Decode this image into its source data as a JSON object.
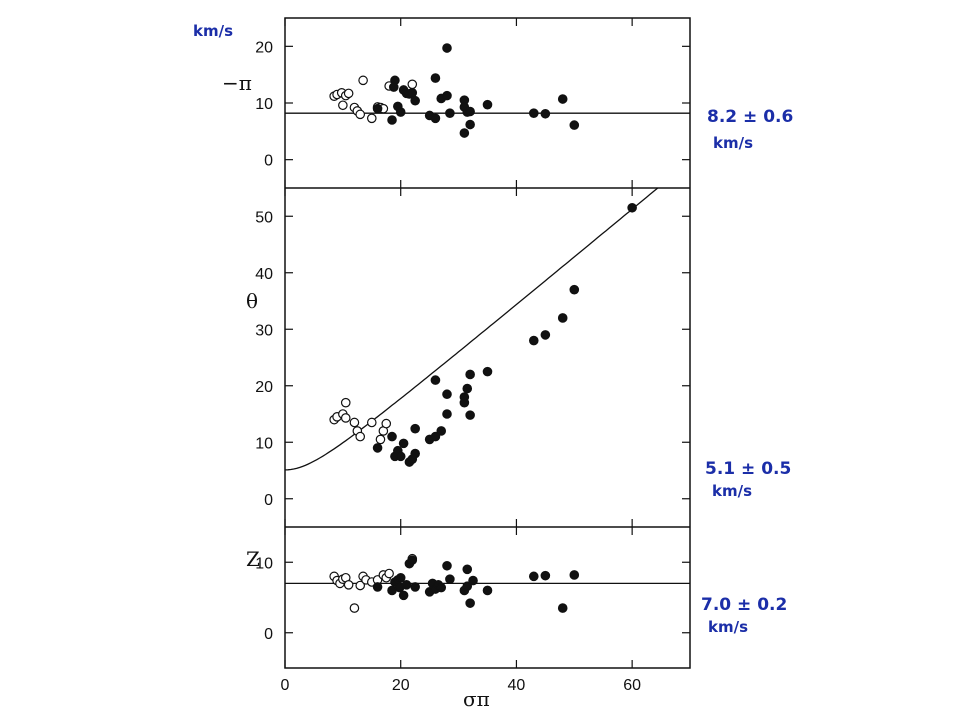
{
  "chart_data": [
    {
      "type": "scatter",
      "panel": "top",
      "ylabel": "−π",
      "unit": "km/s",
      "xlim": [
        0,
        70
      ],
      "ylim": [
        -5,
        25
      ],
      "yticks": [
        0,
        10,
        20
      ],
      "fit_annotation_line1": "8.2 ± 0.6",
      "fit_annotation_line2": "km/s",
      "fit_line": {
        "kind": "constant",
        "value": 8.2
      },
      "series": [
        {
          "marker": "open",
          "points": [
            [
              8.5,
              11.2
            ],
            [
              9,
              11.5
            ],
            [
              9.8,
              11.8
            ],
            [
              10,
              9.6
            ],
            [
              10.5,
              11.3
            ],
            [
              11,
              11.7
            ],
            [
              12,
              9.2
            ],
            [
              12.5,
              8.6
            ],
            [
              13,
              8
            ],
            [
              13.5,
              14
            ],
            [
              15,
              7.3
            ],
            [
              16,
              9.3
            ],
            [
              16.5,
              9.2
            ],
            [
              17,
              9
            ],
            [
              18,
              13
            ],
            [
              22,
              13.3
            ]
          ]
        },
        {
          "marker": "filled",
          "points": [
            [
              16,
              9
            ],
            [
              18.5,
              7
            ],
            [
              18.8,
              12.8
            ],
            [
              19,
              14
            ],
            [
              19.5,
              9.4
            ],
            [
              20,
              8.4
            ],
            [
              20.5,
              12.3
            ],
            [
              21,
              11.7
            ],
            [
              21.5,
              11.6
            ],
            [
              22,
              11.8
            ],
            [
              22.5,
              10.4
            ],
            [
              25,
              7.8
            ],
            [
              26,
              7.3
            ],
            [
              26,
              14.4
            ],
            [
              27,
              10.8
            ],
            [
              28,
              11.3
            ],
            [
              28,
              19.7
            ],
            [
              28.5,
              8.2
            ],
            [
              31,
              10.5
            ],
            [
              31,
              9.3
            ],
            [
              31.5,
              8.4
            ],
            [
              31,
              4.7
            ],
            [
              32,
              8.5
            ],
            [
              32,
              6.2
            ],
            [
              35,
              9.7
            ],
            [
              43,
              8.2
            ],
            [
              45,
              8.1
            ],
            [
              48,
              10.7
            ],
            [
              50,
              6.1
            ]
          ]
        }
      ]
    },
    {
      "type": "scatter",
      "panel": "middle",
      "ylabel": "θ",
      "xlim": [
        0,
        70
      ],
      "ylim": [
        -5,
        55
      ],
      "yticks": [
        0,
        10,
        20,
        30,
        40,
        50
      ],
      "fit_annotation_line1": "5.1 ± 0.5",
      "fit_annotation_line2": "km/s",
      "fit_line": {
        "kind": "quadrature",
        "dispersion": 5.1,
        "slope": 0.85
      },
      "series": [
        {
          "marker": "open",
          "points": [
            [
              8.5,
              14
            ],
            [
              9,
              14.5
            ],
            [
              10,
              15
            ],
            [
              10.5,
              14.3
            ],
            [
              10.5,
              17
            ],
            [
              12,
              13.5
            ],
            [
              12.5,
              12
            ],
            [
              13,
              11
            ],
            [
              15,
              13.5
            ],
            [
              16.5,
              10.5
            ],
            [
              17,
              12
            ],
            [
              17.5,
              13.3
            ]
          ]
        },
        {
          "marker": "filled",
          "points": [
            [
              16,
              9
            ],
            [
              18.5,
              11
            ],
            [
              19,
              7.5
            ],
            [
              19.5,
              8.5
            ],
            [
              20,
              7.5
            ],
            [
              20.5,
              9.8
            ],
            [
              21.5,
              6.5
            ],
            [
              22,
              7
            ],
            [
              22.5,
              12.4
            ],
            [
              22.5,
              8
            ],
            [
              25,
              10.5
            ],
            [
              26,
              11
            ],
            [
              26,
              21
            ],
            [
              27,
              12
            ],
            [
              28,
              15
            ],
            [
              28,
              18.5
            ],
            [
              31,
              17
            ],
            [
              31,
              18
            ],
            [
              31.5,
              19.5
            ],
            [
              32,
              14.8
            ],
            [
              32,
              22
            ],
            [
              35,
              22.5
            ],
            [
              43,
              28
            ],
            [
              45,
              29
            ],
            [
              48,
              32
            ],
            [
              50,
              37
            ],
            [
              60,
              51.5
            ]
          ]
        }
      ]
    },
    {
      "type": "scatter",
      "panel": "bottom",
      "ylabel": "Z",
      "xlabel": "σπ",
      "xlim": [
        0,
        70
      ],
      "ylim": [
        -5,
        15
      ],
      "xticks": [
        0,
        20,
        40,
        60
      ],
      "yticks": [
        0,
        10
      ],
      "fit_annotation_line1": "7.0 ± 0.2",
      "fit_annotation_line2": "km/s",
      "fit_line": {
        "kind": "constant",
        "value": 7.0
      },
      "series": [
        {
          "marker": "open",
          "points": [
            [
              8.5,
              8
            ],
            [
              9,
              7.4
            ],
            [
              9.5,
              7
            ],
            [
              10,
              7.6
            ],
            [
              10.5,
              7.8
            ],
            [
              11,
              6.8
            ],
            [
              12,
              3.5
            ],
            [
              13,
              6.7
            ],
            [
              13.5,
              8
            ],
            [
              14,
              7.5
            ],
            [
              15,
              7.2
            ],
            [
              16,
              7.5
            ],
            [
              17,
              8.2
            ],
            [
              17.5,
              7.8
            ],
            [
              18,
              8.4
            ],
            [
              22,
              10.5
            ]
          ]
        },
        {
          "marker": "filled",
          "points": [
            [
              16,
              6.5
            ],
            [
              18.5,
              6
            ],
            [
              19,
              7.2
            ],
            [
              19.5,
              7.5
            ],
            [
              19.8,
              6.4
            ],
            [
              20,
              7.8
            ],
            [
              20.5,
              5.3
            ],
            [
              21,
              6.8
            ],
            [
              21.5,
              9.8
            ],
            [
              22,
              10.3
            ],
            [
              22.5,
              6.5
            ],
            [
              25,
              5.8
            ],
            [
              25.5,
              7
            ],
            [
              26,
              6.2
            ],
            [
              26.5,
              6.8
            ],
            [
              27,
              6.4
            ],
            [
              28,
              9.5
            ],
            [
              28.5,
              7.6
            ],
            [
              31,
              6
            ],
            [
              31.5,
              9
            ],
            [
              31.5,
              6.6
            ],
            [
              32,
              4.2
            ],
            [
              32.5,
              7.4
            ],
            [
              35,
              6
            ],
            [
              43,
              8
            ],
            [
              45,
              8.1
            ],
            [
              48,
              3.5
            ],
            [
              50,
              8.2
            ]
          ]
        }
      ]
    }
  ],
  "corner_unit_label": "km/s"
}
